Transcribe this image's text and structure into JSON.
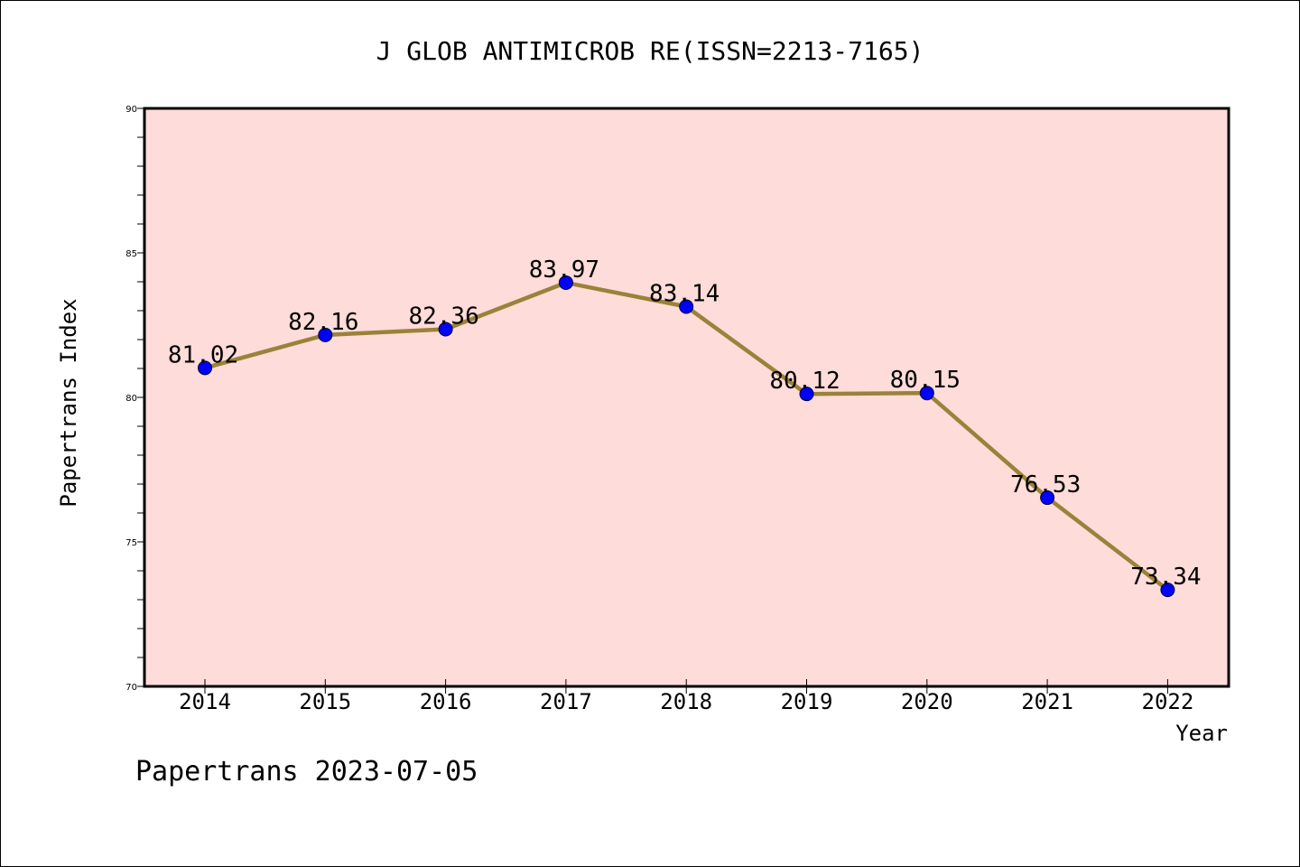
{
  "chart_data": {
    "type": "line",
    "title": "J GLOB ANTIMICROB RE(ISSN=2213-7165)",
    "xlabel": "Year",
    "ylabel": "Papertrans Index",
    "categories": [
      "2014",
      "2015",
      "2016",
      "2017",
      "2018",
      "2019",
      "2020",
      "2021",
      "2022"
    ],
    "series": [
      {
        "values": [
          81.02,
          82.16,
          82.36,
          83.97,
          83.14,
          80.12,
          80.15,
          76.53,
          73.34
        ],
        "labels": [
          "81.02",
          "82.16",
          "82.36",
          "83.97",
          "83.14",
          "80.12",
          "80.15",
          "76.53",
          "73.34"
        ]
      }
    ],
    "ylim": [
      70,
      90
    ],
    "yticks": [
      "70",
      "75",
      "80",
      "85",
      "90"
    ],
    "grid": false,
    "legend": "none",
    "colors": {
      "plot_bg": "#fddcd9",
      "line": "#9a823a",
      "marker": "#0000ff",
      "axis": "#000000"
    }
  },
  "footer": {
    "text": "Papertrans 2023-07-05"
  }
}
